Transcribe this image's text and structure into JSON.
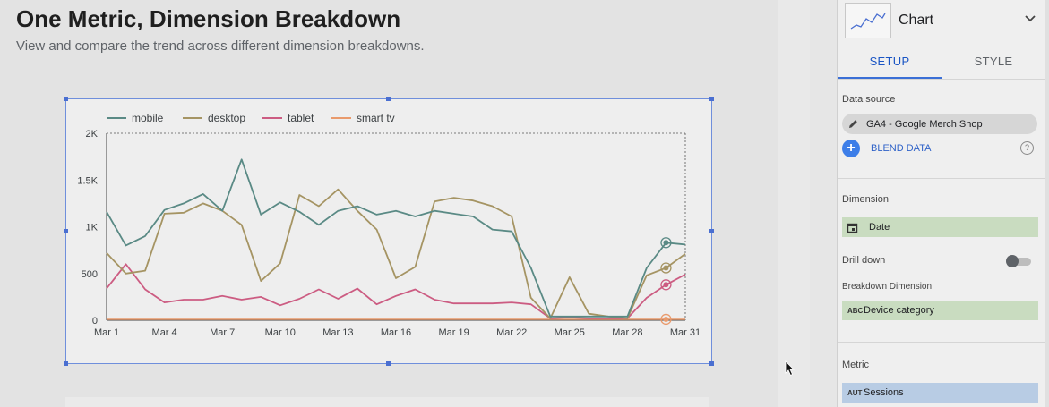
{
  "report": {
    "title": "One Metric, Dimension Breakdown",
    "subtitle": "View and compare the trend across different dimension breakdowns."
  },
  "chart_data": {
    "type": "line",
    "title": "",
    "xlabel": "",
    "ylabel": "",
    "ylim": [
      0,
      2000
    ],
    "y_ticks": [
      "0",
      "500",
      "1K",
      "1.5K",
      "2K"
    ],
    "y_tick_values": [
      0,
      500,
      1000,
      1500,
      2000
    ],
    "x_tick_labels": [
      "Mar 1",
      "Mar 4",
      "Mar 7",
      "Mar 10",
      "Mar 13",
      "Mar 16",
      "Mar 19",
      "Mar 22",
      "Mar 25",
      "Mar 28",
      "Mar 31"
    ],
    "x_tick_days": [
      1,
      4,
      7,
      10,
      13,
      16,
      19,
      22,
      25,
      28,
      31
    ],
    "x": [
      1,
      2,
      3,
      4,
      5,
      6,
      7,
      8,
      9,
      10,
      11,
      12,
      13,
      14,
      15,
      16,
      17,
      18,
      19,
      20,
      21,
      22,
      23,
      24,
      25,
      26,
      27,
      28,
      29,
      30,
      31
    ],
    "legend_position": "top-left",
    "grid": false,
    "series": [
      {
        "name": "mobile",
        "color": "#5a8a85",
        "values": [
          1160,
          800,
          900,
          1180,
          1250,
          1350,
          1170,
          1720,
          1130,
          1260,
          1160,
          1020,
          1170,
          1220,
          1130,
          1170,
          1110,
          1170,
          1140,
          1110,
          970,
          950,
          560,
          40,
          40,
          40,
          40,
          40,
          560,
          830,
          810
        ]
      },
      {
        "name": "desktop",
        "color": "#a59463",
        "values": [
          720,
          500,
          530,
          1140,
          1150,
          1250,
          1170,
          1020,
          420,
          610,
          1340,
          1220,
          1400,
          1170,
          970,
          450,
          570,
          1270,
          1310,
          1280,
          1220,
          1110,
          240,
          20,
          460,
          70,
          40,
          20,
          480,
          560,
          710
        ]
      },
      {
        "name": "tablet",
        "color": "#cc5c82",
        "values": [
          340,
          600,
          330,
          190,
          220,
          220,
          260,
          220,
          250,
          160,
          230,
          330,
          230,
          340,
          170,
          260,
          330,
          220,
          180,
          180,
          180,
          190,
          170,
          20,
          30,
          20,
          20,
          20,
          240,
          380,
          490
        ]
      },
      {
        "name": "smart tv",
        "color": "#e99a6c",
        "values": [
          10,
          10,
          10,
          10,
          10,
          10,
          10,
          10,
          10,
          10,
          10,
          10,
          10,
          10,
          10,
          10,
          10,
          10,
          10,
          10,
          10,
          10,
          10,
          10,
          10,
          10,
          10,
          10,
          10,
          10,
          10
        ]
      }
    ]
  },
  "panel": {
    "chart_type": "Chart",
    "tabs": [
      "SETUP",
      "STYLE"
    ],
    "data_source_label": "Data source",
    "data_source": "GA4 - Google Merch Shop",
    "blend_data": "BLEND DATA",
    "help": "?",
    "dimension_label": "Dimension",
    "dimension": "Date",
    "drill_down_label": "Drill down",
    "breakdown_label": "Breakdown Dimension",
    "breakdown_type": "ABC",
    "breakdown": "Device category",
    "metric_label": "Metric",
    "metric_type": "AUT",
    "metric": "Sessions"
  },
  "colors": {
    "selection": "#4a6fd1",
    "accent": "#1a55c4",
    "dimension_chip": "#c9dcc0",
    "metric_chip": "#b8cce4"
  },
  "icons": [
    "line-chart-icon",
    "chevron-down-icon",
    "pencil-icon",
    "plus-icon",
    "help-icon",
    "calendar-icon",
    "mouse-cursor-icon"
  ]
}
